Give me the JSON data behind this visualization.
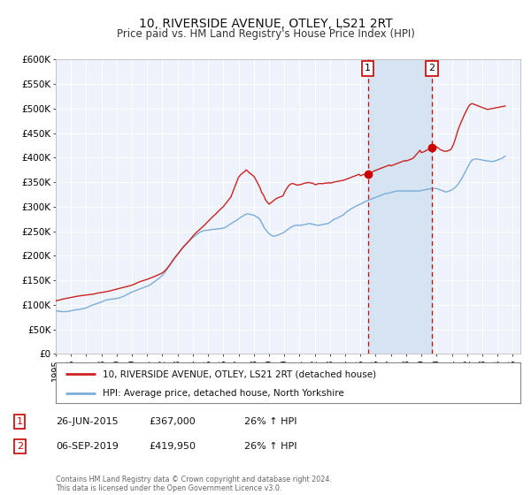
{
  "title": "10, RIVERSIDE AVENUE, OTLEY, LS21 2RT",
  "subtitle": "Price paid vs. HM Land Registry's House Price Index (HPI)",
  "title_fontsize": 10,
  "subtitle_fontsize": 8.5,
  "background_color": "#ffffff",
  "plot_bg_color": "#eef2fa",
  "grid_color": "#ffffff",
  "xmin": 1995.0,
  "xmax": 2025.5,
  "ymin": 0,
  "ymax": 600000,
  "yticks": [
    0,
    50000,
    100000,
    150000,
    200000,
    250000,
    300000,
    350000,
    400000,
    450000,
    500000,
    550000,
    600000
  ],
  "event1_x": 2015.487,
  "event1_y": 367000,
  "event2_x": 2019.676,
  "event2_y": 419950,
  "event_color": "#cc0000",
  "hpi_line_color": "#7aaddb",
  "price_line_color": "#cc2222",
  "shaded_color": "#cfe0f0",
  "legend_label1": "10, RIVERSIDE AVENUE, OTLEY, LS21 2RT (detached house)",
  "legend_label2": "HPI: Average price, detached house, North Yorkshire",
  "table_row1": [
    "1",
    "26-JUN-2015",
    "£367,000",
    "26% ↑ HPI"
  ],
  "table_row2": [
    "2",
    "06-SEP-2019",
    "£419,950",
    "26% ↑ HPI"
  ],
  "footer": "Contains HM Land Registry data © Crown copyright and database right 2024.\nThis data is licensed under the Open Government Licence v3.0.",
  "hpi_data_years": [
    1995.0,
    1995.083,
    1995.167,
    1995.25,
    1995.333,
    1995.417,
    1995.5,
    1995.583,
    1995.667,
    1995.75,
    1995.833,
    1995.917,
    1996.0,
    1996.083,
    1996.167,
    1996.25,
    1996.333,
    1996.417,
    1996.5,
    1996.583,
    1996.667,
    1996.75,
    1996.833,
    1996.917,
    1997.0,
    1997.083,
    1997.167,
    1997.25,
    1997.333,
    1997.417,
    1997.5,
    1997.583,
    1997.667,
    1997.75,
    1997.833,
    1997.917,
    1998.0,
    1998.083,
    1998.167,
    1998.25,
    1998.333,
    1998.417,
    1998.5,
    1998.583,
    1998.667,
    1998.75,
    1998.833,
    1998.917,
    1999.0,
    1999.083,
    1999.167,
    1999.25,
    1999.333,
    1999.417,
    1999.5,
    1999.583,
    1999.667,
    1999.75,
    1999.833,
    1999.917,
    2000.0,
    2000.083,
    2000.167,
    2000.25,
    2000.333,
    2000.417,
    2000.5,
    2000.583,
    2000.667,
    2000.75,
    2000.833,
    2000.917,
    2001.0,
    2001.083,
    2001.167,
    2001.25,
    2001.333,
    2001.417,
    2001.5,
    2001.583,
    2001.667,
    2001.75,
    2001.833,
    2001.917,
    2002.0,
    2002.083,
    2002.167,
    2002.25,
    2002.333,
    2002.417,
    2002.5,
    2002.583,
    2002.667,
    2002.75,
    2002.833,
    2002.917,
    2003.0,
    2003.083,
    2003.167,
    2003.25,
    2003.333,
    2003.417,
    2003.5,
    2003.583,
    2003.667,
    2003.75,
    2003.833,
    2003.917,
    2004.0,
    2004.083,
    2004.167,
    2004.25,
    2004.333,
    2004.417,
    2004.5,
    2004.583,
    2004.667,
    2004.75,
    2004.833,
    2004.917,
    2005.0,
    2005.083,
    2005.167,
    2005.25,
    2005.333,
    2005.417,
    2005.5,
    2005.583,
    2005.667,
    2005.75,
    2005.833,
    2005.917,
    2006.0,
    2006.083,
    2006.167,
    2006.25,
    2006.333,
    2006.417,
    2006.5,
    2006.583,
    2006.667,
    2006.75,
    2006.833,
    2006.917,
    2007.0,
    2007.083,
    2007.167,
    2007.25,
    2007.333,
    2007.417,
    2007.5,
    2007.583,
    2007.667,
    2007.75,
    2007.833,
    2007.917,
    2008.0,
    2008.083,
    2008.167,
    2008.25,
    2008.333,
    2008.417,
    2008.5,
    2008.583,
    2008.667,
    2008.75,
    2008.833,
    2008.917,
    2009.0,
    2009.083,
    2009.167,
    2009.25,
    2009.333,
    2009.417,
    2009.5,
    2009.583,
    2009.667,
    2009.75,
    2009.833,
    2009.917,
    2010.0,
    2010.083,
    2010.167,
    2010.25,
    2010.333,
    2010.417,
    2010.5,
    2010.583,
    2010.667,
    2010.75,
    2010.833,
    2010.917,
    2011.0,
    2011.083,
    2011.167,
    2011.25,
    2011.333,
    2011.417,
    2011.5,
    2011.583,
    2011.667,
    2011.75,
    2011.833,
    2011.917,
    2012.0,
    2012.083,
    2012.167,
    2012.25,
    2012.333,
    2012.417,
    2012.5,
    2012.583,
    2012.667,
    2012.75,
    2012.833,
    2012.917,
    2013.0,
    2013.083,
    2013.167,
    2013.25,
    2013.333,
    2013.417,
    2013.5,
    2013.583,
    2013.667,
    2013.75,
    2013.833,
    2013.917,
    2014.0,
    2014.083,
    2014.167,
    2014.25,
    2014.333,
    2014.417,
    2014.5,
    2014.583,
    2014.667,
    2014.75,
    2014.833,
    2014.917,
    2015.0,
    2015.083,
    2015.167,
    2015.25,
    2015.333,
    2015.417,
    2015.5,
    2015.583,
    2015.667,
    2015.75,
    2015.833,
    2015.917,
    2016.0,
    2016.083,
    2016.167,
    2016.25,
    2016.333,
    2016.417,
    2016.5,
    2016.583,
    2016.667,
    2016.75,
    2016.833,
    2016.917,
    2017.0,
    2017.083,
    2017.167,
    2017.25,
    2017.333,
    2017.417,
    2017.5,
    2017.583,
    2017.667,
    2017.75,
    2017.833,
    2017.917,
    2018.0,
    2018.083,
    2018.167,
    2018.25,
    2018.333,
    2018.417,
    2018.5,
    2018.583,
    2018.667,
    2018.75,
    2018.833,
    2018.917,
    2019.0,
    2019.083,
    2019.167,
    2019.25,
    2019.333,
    2019.417,
    2019.5,
    2019.583,
    2019.667,
    2019.75,
    2019.833,
    2019.917,
    2020.0,
    2020.083,
    2020.167,
    2020.25,
    2020.333,
    2020.417,
    2020.5,
    2020.583,
    2020.667,
    2020.75,
    2020.833,
    2020.917,
    2021.0,
    2021.083,
    2021.167,
    2021.25,
    2021.333,
    2021.417,
    2021.5,
    2021.583,
    2021.667,
    2021.75,
    2021.833,
    2021.917,
    2022.0,
    2022.083,
    2022.167,
    2022.25,
    2022.333,
    2022.417,
    2022.5,
    2022.583,
    2022.667,
    2022.75,
    2022.833,
    2022.917,
    2023.0,
    2023.083,
    2023.167,
    2023.25,
    2023.333,
    2023.417,
    2023.5,
    2023.583,
    2023.667,
    2023.75,
    2023.833,
    2023.917,
    2024.0,
    2024.083,
    2024.167,
    2024.25,
    2024.333,
    2024.417,
    2024.5
  ],
  "hpi_data_values": [
    88000,
    87500,
    87000,
    86800,
    86500,
    86200,
    86000,
    86200,
    86400,
    86600,
    86800,
    87000,
    88000,
    88500,
    89000,
    89500,
    89800,
    90000,
    90500,
    91000,
    91500,
    92000,
    92500,
    93000,
    94000,
    95000,
    96500,
    97500,
    98500,
    99500,
    100500,
    101500,
    102000,
    103000,
    104000,
    105000,
    106000,
    107000,
    108000,
    109000,
    110000,
    110500,
    111000,
    111200,
    111500,
    112000,
    112200,
    112500,
    113000,
    113500,
    114000,
    115000,
    116000,
    117000,
    118000,
    119500,
    121000,
    122000,
    123500,
    125000,
    126000,
    127000,
    128000,
    129000,
    130000,
    131000,
    132000,
    133000,
    134000,
    135000,
    136000,
    137000,
    138000,
    139000,
    140500,
    142000,
    144000,
    146000,
    147500,
    149500,
    151500,
    153000,
    155500,
    158000,
    160000,
    163000,
    166500,
    170000,
    174000,
    178000,
    182000,
    186000,
    190000,
    193500,
    197000,
    200000,
    203000,
    206500,
    210000,
    213500,
    217000,
    220000,
    222500,
    225000,
    228000,
    230500,
    233000,
    235000,
    237000,
    239000,
    241000,
    243000,
    245000,
    247000,
    248500,
    249500,
    250500,
    251000,
    251500,
    252000,
    252000,
    252500,
    253000,
    253500,
    254000,
    254000,
    254000,
    254500,
    255000,
    255000,
    255500,
    256000,
    256000,
    257000,
    258500,
    260000,
    262000,
    264000,
    265000,
    267000,
    268500,
    270000,
    271500,
    273000,
    275000,
    277000,
    279000,
    280500,
    282000,
    283500,
    285000,
    285000,
    285000,
    284500,
    283500,
    283000,
    283000,
    281000,
    279500,
    278000,
    276500,
    273000,
    268000,
    263500,
    258000,
    254500,
    251000,
    248000,
    245000,
    243000,
    241500,
    240000,
    240000,
    240500,
    241500,
    242000,
    243000,
    244500,
    245500,
    246000,
    248000,
    250000,
    252000,
    254000,
    256000,
    257500,
    259000,
    260000,
    261500,
    262000,
    262000,
    262000,
    262000,
    262000,
    262500,
    263000,
    263500,
    264000,
    264500,
    265500,
    265500,
    265000,
    264500,
    264000,
    263000,
    262500,
    262000,
    262000,
    262500,
    263000,
    263500,
    264000,
    264500,
    265000,
    265500,
    266000,
    268000,
    270000,
    272000,
    274000,
    275000,
    276000,
    277000,
    278500,
    280000,
    281000,
    282500,
    284000,
    287000,
    289000,
    291000,
    292500,
    294500,
    296000,
    297500,
    299000,
    300500,
    301500,
    303000,
    304000,
    305000,
    306500,
    308000,
    309500,
    310500,
    311500,
    313000,
    314000,
    315000,
    316000,
    317000,
    318000,
    319000,
    320000,
    321000,
    322000,
    323000,
    324000,
    325000,
    326000,
    326500,
    327000,
    327500,
    328000,
    329000,
    329500,
    330500,
    331000,
    331500,
    332000,
    332000,
    332000,
    332000,
    332000,
    332000,
    332000,
    332000,
    332000,
    332000,
    332000,
    332000,
    332000,
    332000,
    332000,
    332000,
    332000,
    332000,
    332000,
    333000,
    333500,
    334000,
    334500,
    335000,
    335500,
    336000,
    336500,
    337000,
    337000,
    337000,
    337000,
    337000,
    336000,
    335000,
    334000,
    333000,
    332500,
    331000,
    330000,
    330000,
    331000,
    332000,
    333000,
    334000,
    336000,
    338000,
    340000,
    343000,
    346000,
    350000,
    354000,
    358000,
    363000,
    368000,
    373000,
    378000,
    383000,
    388000,
    392000,
    395000,
    396000,
    397000,
    397500,
    397000,
    396500,
    396000,
    395500,
    395000,
    394500,
    394000,
    393500,
    393000,
    393000,
    392500,
    392000,
    392000,
    392500,
    393000,
    394000,
    395000,
    396000,
    397000,
    398000,
    399000,
    401000,
    403000
  ],
  "price_data_years": [
    1995.0,
    1995.5,
    1996.5,
    1997.0,
    1997.5,
    1997.75,
    1998.0,
    1998.25,
    1998.5,
    1998.75,
    1999.0,
    1999.5,
    2000.0,
    2000.5,
    2001.0,
    2001.5,
    2002.0,
    2002.25,
    2002.5,
    2002.75,
    2003.0,
    2003.25,
    2003.5,
    2003.75,
    2004.0,
    2004.25,
    2004.5,
    2004.75,
    2005.0,
    2005.25,
    2005.5,
    2005.75,
    2006.0,
    2006.25,
    2006.5,
    2006.75,
    2007.0,
    2007.083,
    2007.167,
    2007.25,
    2007.333,
    2007.417,
    2007.5,
    2007.583,
    2007.667,
    2007.75,
    2008.0,
    2008.083,
    2008.25,
    2008.417,
    2008.5,
    2008.667,
    2008.75,
    2008.917,
    2009.0,
    2009.083,
    2009.167,
    2009.25,
    2009.333,
    2009.417,
    2009.5,
    2009.583,
    2009.667,
    2009.75,
    2009.833,
    2009.917,
    2010.0,
    2010.083,
    2010.167,
    2010.25,
    2010.333,
    2010.417,
    2010.5,
    2010.583,
    2010.667,
    2010.75,
    2010.833,
    2010.917,
    2011.0,
    2011.083,
    2011.167,
    2011.25,
    2011.333,
    2011.417,
    2011.5,
    2011.583,
    2011.667,
    2011.75,
    2011.833,
    2011.917,
    2012.0,
    2012.083,
    2012.167,
    2012.25,
    2012.333,
    2012.417,
    2012.5,
    2012.583,
    2012.667,
    2012.75,
    2012.833,
    2012.917,
    2013.0,
    2013.083,
    2013.167,
    2013.25,
    2013.333,
    2013.417,
    2013.5,
    2013.583,
    2013.667,
    2013.75,
    2013.833,
    2013.917,
    2014.0,
    2014.083,
    2014.167,
    2014.25,
    2014.333,
    2014.417,
    2014.5,
    2014.583,
    2014.667,
    2014.75,
    2014.833,
    2014.917,
    2015.0,
    2015.083,
    2015.167,
    2015.25,
    2015.333,
    2015.417,
    2015.487,
    2015.583,
    2015.667,
    2015.75,
    2015.833,
    2015.917,
    2016.0,
    2016.083,
    2016.167,
    2016.25,
    2016.333,
    2016.417,
    2016.5,
    2016.583,
    2016.667,
    2016.75,
    2016.833,
    2016.917,
    2017.0,
    2017.083,
    2017.167,
    2017.25,
    2017.333,
    2017.417,
    2017.5,
    2017.583,
    2017.667,
    2017.75,
    2017.833,
    2017.917,
    2018.0,
    2018.083,
    2018.167,
    2018.25,
    2018.333,
    2018.417,
    2018.5,
    2018.583,
    2018.667,
    2018.75,
    2018.833,
    2018.917,
    2019.0,
    2019.083,
    2019.167,
    2019.25,
    2019.333,
    2019.417,
    2019.5,
    2019.583,
    2019.676,
    2019.75,
    2019.833,
    2019.917,
    2020.0,
    2020.083,
    2020.167,
    2020.25,
    2020.333,
    2020.417,
    2020.5,
    2020.583,
    2020.667,
    2020.75,
    2020.833,
    2020.917,
    2021.0,
    2021.083,
    2021.167,
    2021.25,
    2021.333,
    2021.417,
    2021.5,
    2021.583,
    2021.667,
    2021.75,
    2021.833,
    2021.917,
    2022.0,
    2022.083,
    2022.167,
    2022.25,
    2022.333,
    2022.417,
    2022.5,
    2022.583,
    2022.667,
    2022.75,
    2022.833,
    2022.917,
    2023.0,
    2023.083,
    2023.167,
    2023.25,
    2023.333,
    2023.417,
    2023.5,
    2023.583,
    2023.667,
    2023.75,
    2023.833,
    2023.917,
    2024.0,
    2024.083,
    2024.167,
    2024.25,
    2024.333,
    2024.417,
    2024.5
  ],
  "price_data_values": [
    108000,
    112000,
    118000,
    120000,
    122000,
    124000,
    125000,
    126500,
    128000,
    130000,
    132000,
    136000,
    140000,
    147000,
    152000,
    158000,
    165000,
    172000,
    182000,
    193000,
    203000,
    213000,
    222000,
    230000,
    240000,
    248000,
    255000,
    262000,
    270000,
    278000,
    285000,
    293000,
    300000,
    310000,
    320000,
    340000,
    360000,
    363000,
    366000,
    368000,
    370000,
    372000,
    375000,
    373000,
    370000,
    368000,
    362000,
    358000,
    348000,
    338000,
    330000,
    322000,
    315000,
    308000,
    305000,
    307000,
    309000,
    311000,
    313000,
    315000,
    317000,
    318000,
    319000,
    320000,
    321000,
    322000,
    328000,
    333000,
    337000,
    341000,
    344000,
    346000,
    347000,
    347000,
    346000,
    345000,
    344000,
    344000,
    345000,
    345000,
    346000,
    347000,
    348000,
    348000,
    349000,
    349000,
    349000,
    348000,
    348000,
    347000,
    345000,
    345000,
    346000,
    347000,
    347000,
    347000,
    347000,
    347000,
    348000,
    348000,
    348000,
    349000,
    348000,
    348500,
    349000,
    350000,
    350500,
    351000,
    351500,
    352000,
    352500,
    353000,
    353500,
    354000,
    355000,
    356000,
    357000,
    358000,
    359000,
    360000,
    361000,
    362000,
    363000,
    364000,
    365000,
    366000,
    363000,
    364000,
    365000,
    365500,
    366000,
    366500,
    367000,
    368000,
    369000,
    370000,
    371500,
    373000,
    374000,
    375000,
    376000,
    377000,
    378000,
    379000,
    380000,
    381000,
    382000,
    383000,
    384000,
    385000,
    383000,
    384000,
    385000,
    386000,
    387000,
    388000,
    389000,
    390000,
    391000,
    392000,
    393000,
    394000,
    393000,
    394000,
    395000,
    396000,
    397000,
    398000,
    400000,
    403000,
    406000,
    409000,
    412000,
    415000,
    410000,
    411000,
    412000,
    413000,
    415000,
    416000,
    417000,
    418000,
    419950,
    421000,
    422000,
    423000,
    422000,
    420000,
    418000,
    416000,
    415000,
    414000,
    413000,
    413000,
    413000,
    414000,
    415000,
    416000,
    420000,
    425000,
    432000,
    440000,
    449000,
    457000,
    464000,
    470000,
    476000,
    482000,
    488000,
    493000,
    498000,
    503000,
    507000,
    509000,
    510000,
    509000,
    508000,
    507000,
    506000,
    505000,
    504000,
    503000,
    502000,
    501000,
    500000,
    499000,
    498000,
    498500,
    499000,
    499500,
    500000,
    500500,
    501000,
    501500,
    502000,
    502500,
    503000,
    503500,
    504000,
    504500,
    505000
  ]
}
